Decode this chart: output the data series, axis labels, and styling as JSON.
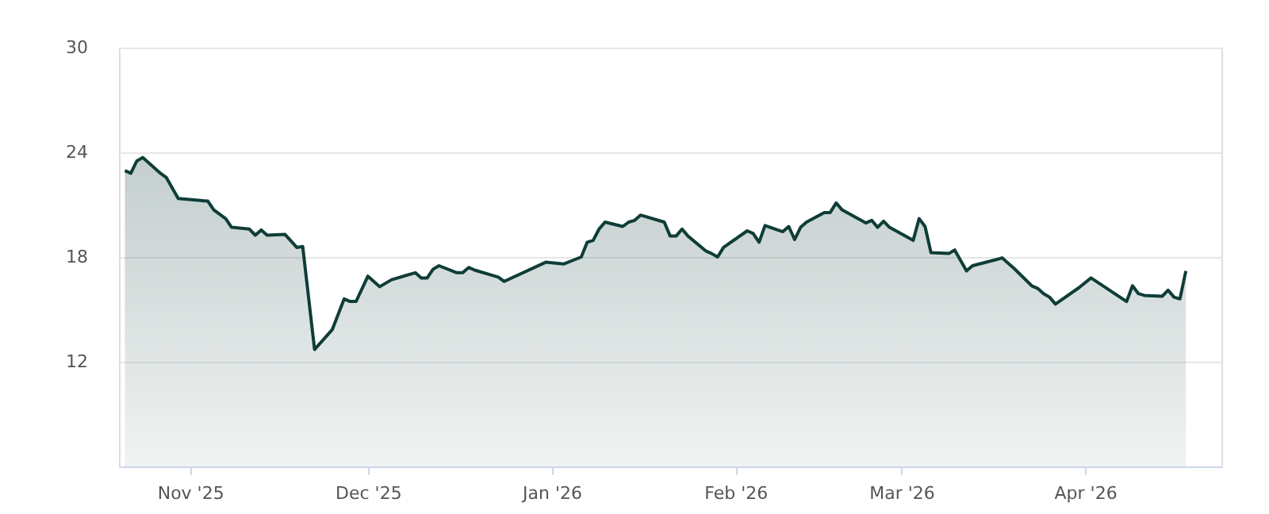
{
  "chart_data": {
    "type": "area",
    "x": [
      "2025-10-21",
      "2025-10-22",
      "2025-10-23",
      "2025-10-24",
      "2025-10-27",
      "2025-10-28",
      "2025-10-30",
      "2025-11-04",
      "2025-11-05",
      "2025-11-07",
      "2025-11-08",
      "2025-11-11",
      "2025-11-12",
      "2025-11-13",
      "2025-11-14",
      "2025-11-17",
      "2025-11-19",
      "2025-11-20",
      "2025-11-22",
      "2025-11-25",
      "2025-11-27",
      "2025-11-28",
      "2025-11-29",
      "2025-12-01",
      "2025-12-03",
      "2025-12-05",
      "2025-12-09",
      "2025-12-10",
      "2025-12-11",
      "2025-12-12",
      "2025-12-13",
      "2025-12-16",
      "2025-12-17",
      "2025-12-18",
      "2025-12-19",
      "2025-12-23",
      "2025-12-24",
      "2025-12-31",
      "2026-01-03",
      "2026-01-06",
      "2026-01-07",
      "2026-01-08",
      "2026-01-09",
      "2026-01-10",
      "2026-01-13",
      "2026-01-14",
      "2026-01-15",
      "2026-01-16",
      "2026-01-20",
      "2026-01-21",
      "2026-01-22",
      "2026-01-23",
      "2026-01-24",
      "2026-01-27",
      "2026-01-28",
      "2026-01-29",
      "2026-01-30",
      "2026-02-03",
      "2026-02-04",
      "2026-02-05",
      "2026-02-06",
      "2026-02-09",
      "2026-02-10",
      "2026-02-11",
      "2026-02-12",
      "2026-02-13",
      "2026-02-16",
      "2026-02-17",
      "2026-02-18",
      "2026-02-19",
      "2026-02-23",
      "2026-02-24",
      "2026-02-25",
      "2026-02-26",
      "2026-02-27",
      "2026-03-03",
      "2026-03-04",
      "2026-03-05",
      "2026-03-06",
      "2026-03-09",
      "2026-03-10",
      "2026-03-12",
      "2026-03-13",
      "2026-03-17",
      "2026-03-18",
      "2026-03-20",
      "2026-03-23",
      "2026-03-24",
      "2026-03-25",
      "2026-03-26",
      "2026-03-27",
      "2026-03-31",
      "2026-04-02",
      "2026-04-08",
      "2026-04-09",
      "2026-04-10",
      "2026-04-11",
      "2026-04-14",
      "2026-04-15",
      "2026-04-16",
      "2026-04-17",
      "2026-04-18"
    ],
    "series": [
      {
        "color": "#0f3d38",
        "values": [
          22.95,
          22.8,
          23.5,
          23.7,
          22.8,
          22.55,
          21.35,
          21.2,
          20.7,
          20.2,
          19.7,
          19.6,
          19.25,
          19.55,
          19.25,
          19.3,
          18.55,
          18.6,
          12.7,
          13.85,
          15.6,
          15.45,
          15.45,
          16.9,
          16.3,
          16.7,
          17.1,
          16.8,
          16.8,
          17.3,
          17.5,
          17.1,
          17.1,
          17.4,
          17.25,
          16.85,
          16.6,
          17.7,
          17.6,
          18.0,
          18.85,
          18.95,
          19.6,
          20.0,
          19.75,
          20.0,
          20.1,
          20.4,
          20.0,
          19.2,
          19.2,
          19.6,
          19.2,
          18.35,
          18.2,
          18.0,
          18.55,
          19.5,
          19.35,
          18.85,
          19.8,
          19.45,
          19.75,
          19.0,
          19.7,
          20.0,
          20.55,
          20.55,
          21.1,
          20.7,
          19.95,
          20.1,
          19.7,
          20.05,
          19.7,
          18.95,
          20.2,
          19.75,
          18.25,
          18.2,
          18.4,
          17.2,
          17.5,
          17.85,
          17.95,
          17.35,
          16.35,
          16.2,
          15.9,
          15.7,
          15.3,
          16.25,
          16.8,
          15.45,
          16.35,
          15.9,
          15.8,
          15.75,
          16.1,
          15.7,
          15.6,
          17.2
        ]
      }
    ],
    "xlim": [
      "2025-10-20",
      "2026-04-24"
    ],
    "xticks": [
      {
        "value": "2025-11-01",
        "label": "Nov '25"
      },
      {
        "value": "2025-12-01",
        "label": "Dec '25"
      },
      {
        "value": "2026-01-01",
        "label": "Jan '26"
      },
      {
        "value": "2026-02-01",
        "label": "Feb '26"
      },
      {
        "value": "2026-03-01",
        "label": "Mar '26"
      },
      {
        "value": "2026-04-01",
        "label": "Apr '26"
      }
    ],
    "ylim": [
      6,
      30
    ],
    "yticks": [
      12,
      18,
      24,
      30
    ],
    "grid": "y"
  }
}
